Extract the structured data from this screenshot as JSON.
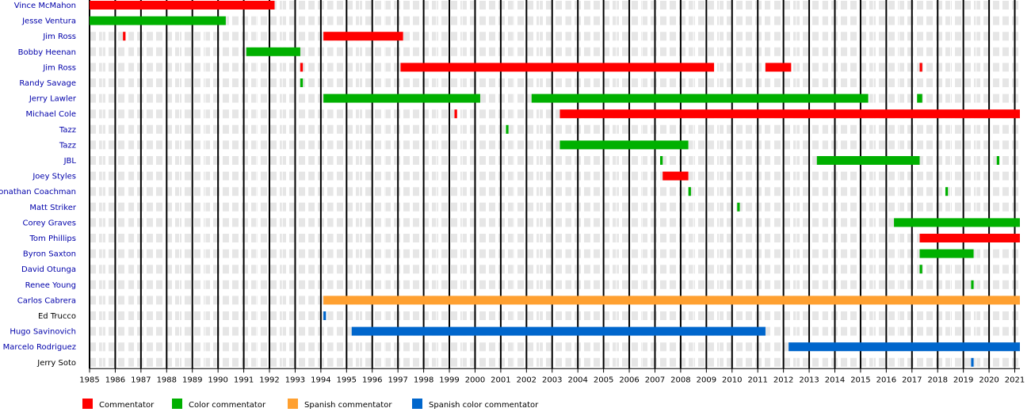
{
  "chart_data": {
    "type": "timeline",
    "x_axis": {
      "min": 1985,
      "max": 2021.2,
      "ticks": [
        1985,
        1986,
        1987,
        1988,
        1989,
        1990,
        1991,
        1992,
        1993,
        1994,
        1995,
        1996,
        1997,
        1998,
        1999,
        2000,
        2001,
        2002,
        2003,
        2004,
        2005,
        2006,
        2007,
        2008,
        2009,
        2010,
        2011,
        2012,
        2013,
        2014,
        2015,
        2016,
        2017,
        2018,
        2019,
        2020,
        2021
      ]
    },
    "categories": {
      "commentator": {
        "label": "Commentator",
        "color": "#ff0000"
      },
      "color": {
        "label": "Color commentator",
        "color": "#00b000"
      },
      "spanish": {
        "label": "Spanish commentator",
        "color": "#ffa030"
      },
      "spanish_color": {
        "label": "Spanish color commentator",
        "color": "#0066cc"
      }
    },
    "legend_order": [
      "commentator",
      "color",
      "spanish",
      "spanish_color"
    ],
    "rows": [
      {
        "label": "Vince McMahon",
        "link": true,
        "bars": [
          {
            "start": 1985.0,
            "end": 1992.2,
            "cat": "commentator"
          }
        ]
      },
      {
        "label": "Jesse Ventura",
        "link": true,
        "bars": [
          {
            "start": 1985.0,
            "end": 1990.3,
            "cat": "color"
          }
        ]
      },
      {
        "label": "Jim Ross",
        "link": true,
        "bars": [
          {
            "start": 1986.3,
            "end": 1986.4,
            "cat": "commentator"
          },
          {
            "start": 1994.1,
            "end": 1997.2,
            "cat": "commentator"
          }
        ]
      },
      {
        "label": "Bobby Heenan",
        "link": true,
        "bars": [
          {
            "start": 1991.1,
            "end": 1993.2,
            "cat": "color"
          }
        ]
      },
      {
        "label": "Jim Ross",
        "link": true,
        "bars": [
          {
            "start": 1993.2,
            "end": 1993.3,
            "cat": "commentator"
          },
          {
            "start": 1997.1,
            "end": 2009.3,
            "cat": "commentator"
          },
          {
            "start": 2011.3,
            "end": 2012.3,
            "cat": "commentator"
          },
          {
            "start": 2017.3,
            "end": 2017.4,
            "cat": "commentator"
          }
        ]
      },
      {
        "label": "Randy Savage",
        "link": true,
        "bars": [
          {
            "start": 1993.2,
            "end": 1993.3,
            "cat": "color"
          }
        ]
      },
      {
        "label": "Jerry Lawler",
        "link": true,
        "bars": [
          {
            "start": 1994.1,
            "end": 2000.2,
            "cat": "color"
          },
          {
            "start": 2002.2,
            "end": 2015.3,
            "cat": "color"
          },
          {
            "start": 2017.2,
            "end": 2017.4,
            "cat": "color"
          }
        ]
      },
      {
        "label": "Michael Cole",
        "link": true,
        "bars": [
          {
            "start": 1999.2,
            "end": 1999.3,
            "cat": "commentator"
          },
          {
            "start": 2003.3,
            "end": 2021.2,
            "cat": "commentator"
          }
        ]
      },
      {
        "label": "Tazz",
        "link": true,
        "bars": [
          {
            "start": 2001.2,
            "end": 2001.3,
            "cat": "color"
          }
        ]
      },
      {
        "label": "Tazz",
        "link": true,
        "bars": [
          {
            "start": 2003.3,
            "end": 2008.3,
            "cat": "color"
          }
        ]
      },
      {
        "label": "JBL",
        "link": true,
        "bars": [
          {
            "start": 2007.2,
            "end": 2007.3,
            "cat": "color"
          },
          {
            "start": 2013.3,
            "end": 2017.3,
            "cat": "color"
          },
          {
            "start": 2020.3,
            "end": 2020.4,
            "cat": "color"
          }
        ]
      },
      {
        "label": "Joey Styles",
        "link": true,
        "bars": [
          {
            "start": 2007.3,
            "end": 2008.3,
            "cat": "commentator"
          }
        ]
      },
      {
        "label": "Jonathan Coachman",
        "link": true,
        "bars": [
          {
            "start": 2008.3,
            "end": 2008.4,
            "cat": "color"
          },
          {
            "start": 2018.3,
            "end": 2018.4,
            "cat": "color"
          }
        ]
      },
      {
        "label": "Matt Striker",
        "link": true,
        "bars": [
          {
            "start": 2010.2,
            "end": 2010.3,
            "cat": "color"
          }
        ]
      },
      {
        "label": "Corey Graves",
        "link": true,
        "bars": [
          {
            "start": 2016.3,
            "end": 2021.2,
            "cat": "color"
          }
        ]
      },
      {
        "label": "Tom Phillips",
        "link": true,
        "bars": [
          {
            "start": 2017.3,
            "end": 2021.2,
            "cat": "commentator"
          }
        ]
      },
      {
        "label": "Byron Saxton",
        "link": true,
        "bars": [
          {
            "start": 2017.3,
            "end": 2019.4,
            "cat": "color"
          }
        ]
      },
      {
        "label": "David Otunga",
        "link": true,
        "bars": [
          {
            "start": 2017.3,
            "end": 2017.4,
            "cat": "color"
          }
        ]
      },
      {
        "label": "Renee Young",
        "link": true,
        "bars": [
          {
            "start": 2019.3,
            "end": 2019.4,
            "cat": "color"
          }
        ]
      },
      {
        "label": "Carlos Cabrera",
        "link": true,
        "bars": [
          {
            "start": 1994.1,
            "end": 2021.2,
            "cat": "spanish"
          }
        ]
      },
      {
        "label": "Ed Trucco",
        "link": false,
        "bars": [
          {
            "start": 1994.1,
            "end": 1994.2,
            "cat": "spanish_color"
          }
        ]
      },
      {
        "label": "Hugo Savinovich",
        "link": true,
        "bars": [
          {
            "start": 1995.2,
            "end": 2011.3,
            "cat": "spanish_color"
          }
        ]
      },
      {
        "label": "Marcelo Rodriguez",
        "link": true,
        "bars": [
          {
            "start": 2012.2,
            "end": 2021.2,
            "cat": "spanish_color"
          }
        ]
      },
      {
        "label": "Jerry Soto",
        "link": false,
        "bars": [
          {
            "start": 2019.3,
            "end": 2019.4,
            "cat": "spanish_color"
          }
        ]
      }
    ]
  }
}
